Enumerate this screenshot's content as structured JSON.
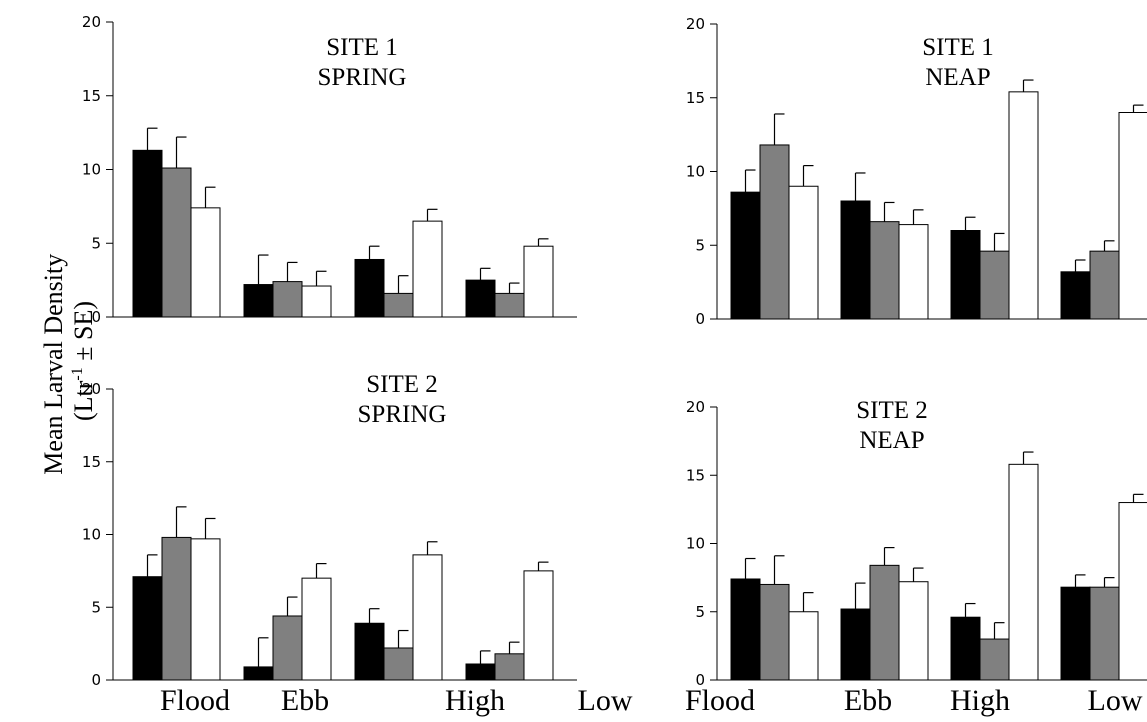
{
  "ylabel": {
    "line1": "Mean Larval Density",
    "line2_pre": "(L",
    "line2_mid": "tr",
    "line2_sup": "-1",
    "line2_post": " ± SE)"
  },
  "series_colors": [
    "#000000",
    "#808080",
    "#ffffff"
  ],
  "chart_data": [
    {
      "type": "bar",
      "title_lines": [
        "SITE 1",
        "SPRING"
      ],
      "categories": [
        "Flood",
        "Ebb",
        "High",
        "Low"
      ],
      "category_labels_shown": false,
      "ylim": [
        0,
        20
      ],
      "yticks": [
        0,
        5,
        10,
        15,
        20
      ],
      "series": [
        {
          "values": [
            11.3,
            2.2,
            3.9,
            2.5
          ],
          "errors": [
            1.5,
            2.0,
            0.9,
            0.8
          ]
        },
        {
          "values": [
            10.1,
            2.4,
            1.6,
            1.6
          ],
          "errors": [
            2.1,
            1.3,
            1.2,
            0.7
          ]
        },
        {
          "values": [
            7.4,
            2.1,
            6.5,
            4.8
          ],
          "errors": [
            1.4,
            1.0,
            0.8,
            0.5
          ]
        }
      ]
    },
    {
      "type": "bar",
      "title_lines": [
        "SITE 1",
        "NEAP"
      ],
      "categories": [
        "Flood",
        "Ebb",
        "High",
        "Low"
      ],
      "category_labels_shown": false,
      "ylim": [
        0,
        20
      ],
      "yticks": [
        0,
        5,
        10,
        15,
        20
      ],
      "series": [
        {
          "values": [
            8.6,
            8.0,
            6.0,
            3.2
          ],
          "errors": [
            1.5,
            1.9,
            0.9,
            0.8
          ]
        },
        {
          "values": [
            11.8,
            6.6,
            4.6,
            4.6
          ],
          "errors": [
            2.1,
            1.3,
            1.2,
            0.7
          ]
        },
        {
          "values": [
            9.0,
            6.4,
            15.4,
            14.0
          ],
          "errors": [
            1.4,
            1.0,
            0.8,
            0.5
          ]
        }
      ]
    },
    {
      "type": "bar",
      "title_lines": [
        "SITE 2",
        "SPRING"
      ],
      "categories": [
        "Flood",
        "Ebb",
        "High",
        "Low"
      ],
      "category_labels_shown": true,
      "ylim": [
        0,
        20
      ],
      "yticks": [
        0,
        5,
        10,
        15,
        20
      ],
      "series": [
        {
          "values": [
            7.1,
            0.9,
            3.9,
            1.1
          ],
          "errors": [
            1.5,
            2.0,
            1.0,
            0.9
          ]
        },
        {
          "values": [
            9.8,
            4.4,
            2.2,
            1.8
          ],
          "errors": [
            2.1,
            1.3,
            1.2,
            0.8
          ]
        },
        {
          "values": [
            9.7,
            7.0,
            8.6,
            7.5
          ],
          "errors": [
            1.4,
            1.0,
            0.9,
            0.6
          ]
        }
      ]
    },
    {
      "type": "bar",
      "title_lines": [
        "SITE 2",
        "NEAP"
      ],
      "categories": [
        "Flood",
        "Ebb",
        "High",
        "Low"
      ],
      "category_labels_shown": true,
      "ylim": [
        0,
        20
      ],
      "yticks": [
        0,
        5,
        10,
        15,
        20
      ],
      "series": [
        {
          "values": [
            7.4,
            5.2,
            4.6,
            6.8
          ],
          "errors": [
            1.5,
            1.9,
            1.0,
            0.9
          ]
        },
        {
          "values": [
            7.0,
            8.4,
            3.0,
            6.8
          ],
          "errors": [
            2.1,
            1.3,
            1.2,
            0.7
          ]
        },
        {
          "values": [
            5.0,
            7.2,
            15.8,
            13.0
          ],
          "errors": [
            1.4,
            1.0,
            0.9,
            0.6
          ]
        }
      ]
    }
  ]
}
